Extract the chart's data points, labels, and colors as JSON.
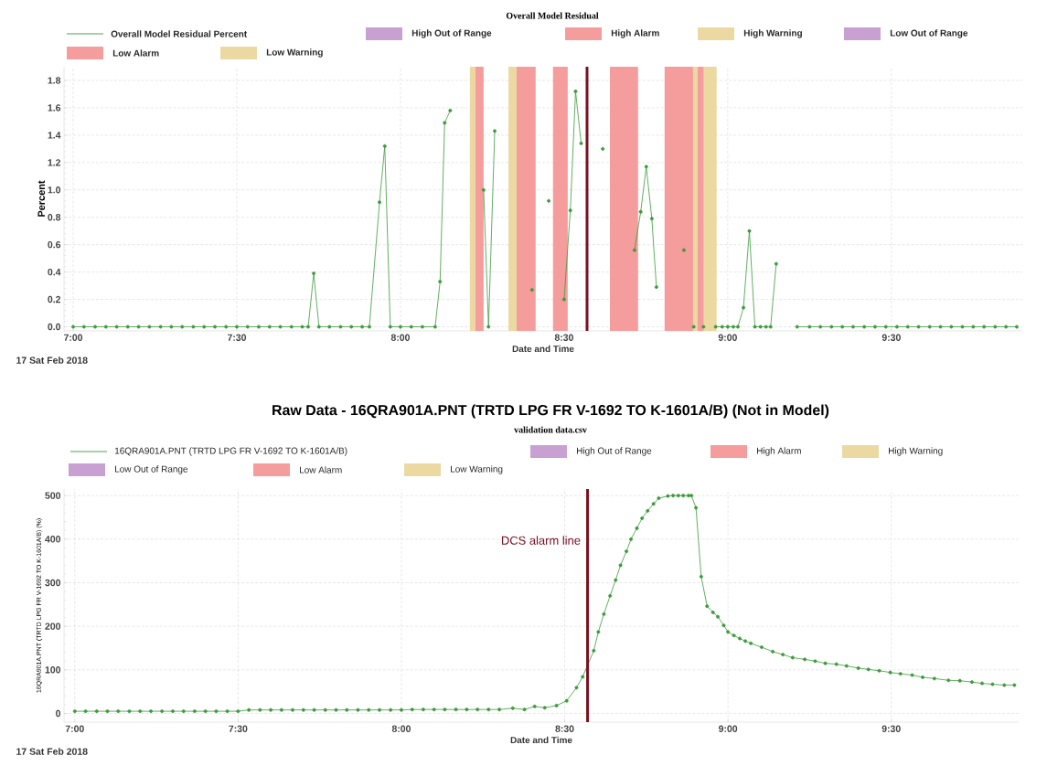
{
  "chart_data": [
    {
      "type": "line",
      "title": "Overall Model Residual",
      "xlabel": "Date and Time",
      "ylabel": "Percent",
      "annotations": [
        "17 Sat  Feb 2018"
      ],
      "xlim": [
        6.972,
        9.9
      ],
      "ylim": [
        -0.03,
        1.9
      ],
      "xticks": [
        {
          "value": 7,
          "label": "7:00"
        },
        {
          "value": 7.5,
          "label": "7:30"
        },
        {
          "value": 8,
          "label": "8:00"
        },
        {
          "value": 8.5,
          "label": "8:30"
        },
        {
          "value": 9,
          "label": "9:00"
        },
        {
          "value": 9.5,
          "label": "9:30"
        }
      ],
      "yticks": [
        {
          "value": 0,
          "label": "0.0"
        },
        {
          "value": 0.2,
          "label": "0.2"
        },
        {
          "value": 0.4,
          "label": "0.4"
        },
        {
          "value": 0.6,
          "label": "0.6"
        },
        {
          "value": 0.8,
          "label": "0.8"
        },
        {
          "value": 1.0,
          "label": "1.0"
        },
        {
          "value": 1.2,
          "label": "1.2"
        },
        {
          "value": 1.4,
          "label": "1.4"
        },
        {
          "value": 1.6,
          "label": "1.6"
        },
        {
          "value": 1.8,
          "label": "1.8"
        }
      ],
      "grid": true,
      "legend": "top",
      "marker": "circle",
      "line_style": "solid",
      "series": [
        {
          "name": "Overall Model Residual Percent",
          "type": "line",
          "color": "#3c9a3c",
          "x": [
            7.0,
            7.033,
            7.067,
            7.1,
            7.133,
            7.167,
            7.2,
            7.233,
            7.267,
            7.3,
            7.333,
            7.367,
            7.4,
            7.433,
            7.467,
            7.5,
            7.533,
            7.567,
            7.6,
            7.633,
            7.667,
            7.7,
            7.718,
            7.735,
            7.751,
            7.783,
            7.817,
            7.85,
            7.883,
            7.905,
            7.936,
            7.952,
            7.969,
            8.0,
            8.033,
            8.067,
            8.106,
            8.121,
            8.135,
            8.152,
            8.2,
            8.254,
            8.269,
            8.288,
            8.35,
            8.402,
            8.43,
            8.453,
            8.48,
            8.5,
            8.519,
            8.535,
            8.552,
            8.59,
            8.618,
            8.67,
            8.715,
            8.734,
            8.751,
            8.768,
            8.782,
            8.82,
            8.866,
            8.88,
            8.896,
            8.91,
            8.926,
            8.945,
            8.963,
            8.983,
            9.0,
            9.017,
            9.031,
            9.048,
            9.066,
            9.083,
            9.1,
            9.117,
            9.131,
            9.148,
            9.18,
            9.212,
            9.25,
            9.283,
            9.317,
            9.35,
            9.383,
            9.417,
            9.45,
            9.483,
            9.517,
            9.55,
            9.583,
            9.617,
            9.65,
            9.683,
            9.717,
            9.75,
            9.783,
            9.817,
            9.85,
            9.883
          ],
          "values": [
            0,
            0,
            0,
            0,
            0,
            0,
            0,
            0,
            0,
            0,
            0,
            0,
            0,
            0,
            0,
            0,
            0,
            0,
            0,
            0,
            0,
            0,
            0,
            0.39,
            0,
            0,
            0,
            0,
            0,
            0,
            0.91,
            1.32,
            0,
            0,
            0,
            0,
            0,
            0.33,
            1.49,
            1.58,
            null,
            1.0,
            0,
            1.43,
            null,
            0.27,
            null,
            0.92,
            null,
            0.2,
            0.85,
            1.72,
            1.34,
            null,
            1.3,
            null,
            0.56,
            0.84,
            1.17,
            0.79,
            0.29,
            null,
            0.56,
            null,
            0,
            null,
            0,
            null,
            0,
            0,
            0,
            0,
            0,
            0.14,
            0.7,
            0,
            0,
            0,
            0,
            0.46,
            null,
            0,
            0,
            0,
            0,
            0,
            0,
            0,
            0,
            0,
            0,
            0,
            0,
            0,
            0,
            0,
            0,
            0,
            0,
            0,
            0,
            0
          ]
        },
        {
          "name": "High Out of Range",
          "type": "area",
          "color": "#c9a0d2"
        },
        {
          "name": "High Alarm",
          "type": "area",
          "color": "#f59c9c"
        },
        {
          "name": "High Warning",
          "type": "area",
          "color": "#ecd9a2"
        },
        {
          "name": "Low Out of Range",
          "type": "area",
          "color": "#c9a0d2"
        },
        {
          "name": "Low Alarm",
          "type": "area",
          "color": "#f59c9c"
        },
        {
          "name": "Low Warning",
          "type": "area",
          "color": "#ecd9a2"
        }
      ],
      "bands": [
        {
          "axis": "x",
          "from": 8.212,
          "to": 8.229,
          "color": "#ecd9a2"
        },
        {
          "axis": "x",
          "from": 8.229,
          "to": 8.254,
          "color": "#f59c9c"
        },
        {
          "axis": "x",
          "from": 8.33,
          "to": 8.355,
          "color": "#ecd9a2"
        },
        {
          "axis": "x",
          "from": 8.355,
          "to": 8.413,
          "color": "#f59c9c"
        },
        {
          "axis": "x",
          "from": 8.466,
          "to": 8.511,
          "color": "#f59c9c"
        },
        {
          "axis": "x",
          "from": 8.64,
          "to": 8.726,
          "color": "#f59c9c"
        },
        {
          "axis": "x",
          "from": 8.807,
          "to": 8.894,
          "color": "#f59c9c"
        },
        {
          "axis": "x",
          "from": 8.894,
          "to": 8.908,
          "color": "#ecd9a2"
        },
        {
          "axis": "x",
          "from": 8.908,
          "to": 8.927,
          "color": "#f59c9c"
        },
        {
          "axis": "x",
          "from": 8.927,
          "to": 8.966,
          "color": "#ecd9a2"
        }
      ],
      "ref_lines": [
        {
          "axis": "x",
          "value": 8.57,
          "color": "#7b1020"
        }
      ]
    },
    {
      "type": "line",
      "title": "Raw Data - 16QRA901A.PNT (TRTD LPG FR V-1692 TO K-1601A/B) (Not in Model)",
      "subtitle": "validation data.csv",
      "xlabel": "Date and Time",
      "ylabel": "16QRA901A.PNT (TRTD LPG FR V-1692 TO K-1601A/B) (%)",
      "annotations": [
        "17 Sat  Feb 2018"
      ],
      "xlim": [
        6.967,
        9.89
      ],
      "ylim": [
        -20,
        515
      ],
      "xticks": [
        {
          "value": 7,
          "label": "7:00"
        },
        {
          "value": 7.5,
          "label": "7:30"
        },
        {
          "value": 8,
          "label": "8:00"
        },
        {
          "value": 8.5,
          "label": "8:30"
        },
        {
          "value": 9,
          "label": "9:00"
        },
        {
          "value": 9.5,
          "label": "9:30"
        }
      ],
      "yticks": [
        0,
        100,
        200,
        300,
        400,
        500
      ],
      "grid": true,
      "legend": "top",
      "marker": "circle",
      "line_style": "solid",
      "series": [
        {
          "name": "16QRA901A.PNT (TRTD LPG FR V-1692 TO K-1601A/B)",
          "type": "line",
          "color": "#3c9a3c",
          "x": [
            7.0,
            7.033,
            7.067,
            7.1,
            7.133,
            7.167,
            7.2,
            7.233,
            7.267,
            7.3,
            7.333,
            7.367,
            7.4,
            7.433,
            7.467,
            7.5,
            7.533,
            7.567,
            7.6,
            7.633,
            7.667,
            7.7,
            7.733,
            7.767,
            7.8,
            7.833,
            7.867,
            7.9,
            7.933,
            7.967,
            8.0,
            8.033,
            8.067,
            8.1,
            8.133,
            8.167,
            8.2,
            8.233,
            8.267,
            8.3,
            8.341,
            8.377,
            8.408,
            8.439,
            8.475,
            8.506,
            8.536,
            8.555,
            8.589,
            8.603,
            8.62,
            8.639,
            8.656,
            8.671,
            8.689,
            8.703,
            8.721,
            8.737,
            8.754,
            8.772,
            8.788,
            8.816,
            8.832,
            8.848,
            8.863,
            8.879,
            8.888,
            8.902,
            8.918,
            8.936,
            8.954,
            8.969,
            8.987,
            9.0,
            9.018,
            9.036,
            9.053,
            9.07,
            9.103,
            9.137,
            9.168,
            9.198,
            9.235,
            9.267,
            9.298,
            9.332,
            9.363,
            9.399,
            9.43,
            9.463,
            9.497,
            9.528,
            9.564,
            9.596,
            9.632,
            9.675,
            9.71,
            9.747,
            9.778,
            9.81,
            9.846,
            9.877
          ],
          "values": [
            5,
            5,
            5,
            5,
            5,
            5,
            5,
            5,
            5,
            5,
            5,
            5,
            5,
            5,
            5,
            5,
            8,
            8,
            8,
            8,
            8,
            8,
            8,
            8,
            8,
            8,
            8,
            8,
            8,
            8,
            8,
            9,
            9,
            9,
            9,
            9,
            9,
            9,
            9,
            9,
            12,
            9,
            16,
            13,
            18,
            29,
            59,
            84,
            144,
            187,
            228,
            270,
            306,
            340,
            372,
            400,
            425,
            448,
            465,
            481,
            494,
            499,
            500,
            500,
            500,
            500,
            500,
            472,
            314,
            246,
            232,
            222,
            202,
            187,
            179,
            172,
            166,
            161,
            152,
            142,
            135,
            128,
            124,
            120,
            115,
            113,
            109,
            104,
            101,
            98,
            94,
            91,
            88,
            83,
            80,
            76,
            75,
            72,
            69,
            67,
            65,
            65
          ]
        },
        {
          "name": "High Out of Range",
          "type": "area",
          "color": "#c9a0d2"
        },
        {
          "name": "High Alarm",
          "type": "area",
          "color": "#f59c9c"
        },
        {
          "name": "High Warning",
          "type": "area",
          "color": "#ecd9a2"
        },
        {
          "name": "Low Out of Range",
          "type": "area",
          "color": "#c9a0d2"
        },
        {
          "name": "Low Alarm",
          "type": "area",
          "color": "#f59c9c"
        },
        {
          "name": "Low Warning",
          "type": "area",
          "color": "#ecd9a2"
        }
      ],
      "ref_lines": [
        {
          "axis": "x",
          "value": 8.57,
          "color": "#7b1020",
          "label": "DCS alarm line"
        }
      ]
    }
  ]
}
